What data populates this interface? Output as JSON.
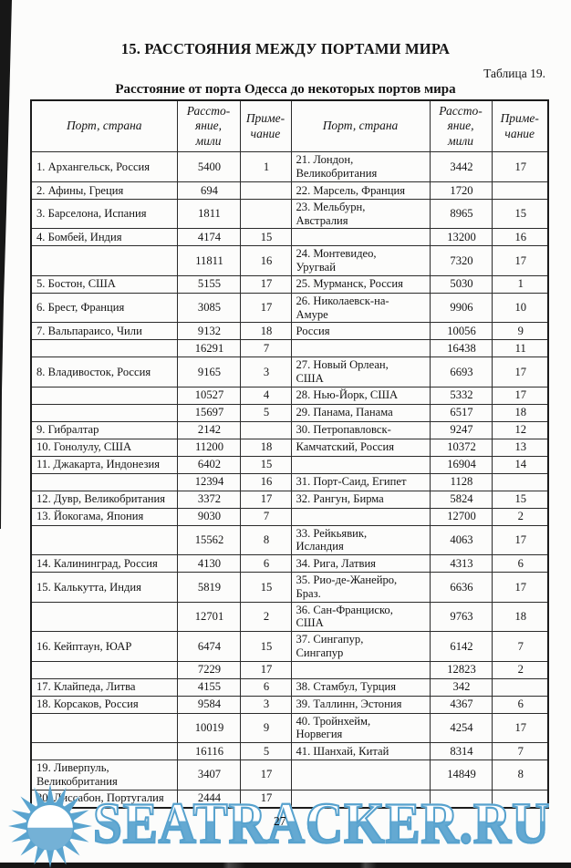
{
  "page": {
    "heading": "15. РАССТОЯНИЯ МЕЖДУ ПОРТАМИ МИРА",
    "table_caption": "Таблица 19.",
    "subtitle": "Расстояние от порта Одесса до некоторых портов мира",
    "page_number": "27"
  },
  "table": {
    "col_headers": {
      "port": "Порт, страна",
      "distance": "Рассто-\nяние,\nмили",
      "note": "Приме-\nчание"
    },
    "rows": [
      [
        "1. Архангельск, Россия",
        "5400",
        "1",
        "21. Лондон,\nВеликобритания",
        "3442",
        "17"
      ],
      [
        "2. Афины, Греция",
        "694",
        "",
        "22. Марсель, Франция",
        "1720",
        ""
      ],
      [
        "3. Барселона, Испания",
        "1811",
        "",
        "23. Мельбурн,\nАвстралия",
        "8965",
        "15"
      ],
      [
        "4. Бомбей, Индия",
        "4174",
        "15",
        "",
        "13200",
        "16"
      ],
      [
        "",
        "11811",
        "16",
        "24. Монтевидео,\nУругвай",
        "7320",
        "17"
      ],
      [
        "5. Бостон, США",
        "5155",
        "17",
        "25. Мурманск, Россия",
        "5030",
        "1"
      ],
      [
        "6. Брест, Франция",
        "3085",
        "17",
        "26. Николаевск-на-\nАмуре",
        "9906",
        "10"
      ],
      [
        "7. Вальпараисо, Чили",
        "9132",
        "18",
        "Россия",
        "10056",
        "9"
      ],
      [
        "",
        "16291",
        "7",
        "",
        "16438",
        "11"
      ],
      [
        "8. Владивосток, Россия",
        "9165",
        "3",
        "27. Новый Орлеан,\nСША",
        "6693",
        "17"
      ],
      [
        "",
        "10527",
        "4",
        "28. Нью-Йорк, США",
        "5332",
        "17"
      ],
      [
        "",
        "15697",
        "5",
        "29. Панама, Панама",
        "6517",
        "18"
      ],
      [
        "9. Гибралтар",
        "2142",
        "",
        "30. Петропавловск-",
        "9247",
        "12"
      ],
      [
        "10. Гонолулу, США",
        "11200",
        "18",
        "Камчатский, Россия",
        "10372",
        "13"
      ],
      [
        "11. Джакарта, Индонезия",
        "6402",
        "15",
        "",
        "16904",
        "14"
      ],
      [
        "",
        "12394",
        "16",
        "31. Порт-Саид, Египет",
        "1128",
        ""
      ],
      [
        "12. Дувр, Великобритания",
        "3372",
        "17",
        "32. Рангун, Бирма",
        "5824",
        "15"
      ],
      [
        "13. Йокогама, Япония",
        "9030",
        "7",
        "",
        "12700",
        "2"
      ],
      [
        "",
        "15562",
        "8",
        "33. Рейкьявик,\nИсландия",
        "4063",
        "17"
      ],
      [
        "14. Калининград, Россия",
        "4130",
        "6",
        "34. Рига, Латвия",
        "4313",
        "6"
      ],
      [
        "15. Калькутта, Индия",
        "5819",
        "15",
        "35. Рио-де-Жанейро,\nБраз.",
        "6636",
        "17"
      ],
      [
        "",
        "12701",
        "2",
        "36. Сан-Франциско,\nСША",
        "9763",
        "18"
      ],
      [
        "16. Кейптаун, ЮАР",
        "6474",
        "15",
        "37. Сингапур,\nСингапур",
        "6142",
        "7"
      ],
      [
        "",
        "7229",
        "17",
        "",
        "12823",
        "2"
      ],
      [
        "17. Клайпеда, Литва",
        "4155",
        "6",
        "38. Стамбул, Турция",
        "342",
        ""
      ],
      [
        "18. Корсаков, Россия",
        "9584",
        "3",
        "39. Таллинн, Эстония",
        "4367",
        "6"
      ],
      [
        "",
        "10019",
        "9",
        "40. Тройнхейм,\nНорвегия",
        "4254",
        "17"
      ],
      [
        "",
        "16116",
        "5",
        "41. Шанхай, Китай",
        "8314",
        "7"
      ],
      [
        "19. Ливерпуль,\nВеликобритания",
        "3407",
        "17",
        "",
        "14849",
        "8"
      ],
      [
        "20. Лиссабон, Португалия",
        "2444",
        "17",
        "",
        "",
        ""
      ]
    ]
  },
  "watermark": {
    "text": "SEATRACKER.RU",
    "icon": "sun-icon",
    "blue": "#5aa4cf"
  }
}
